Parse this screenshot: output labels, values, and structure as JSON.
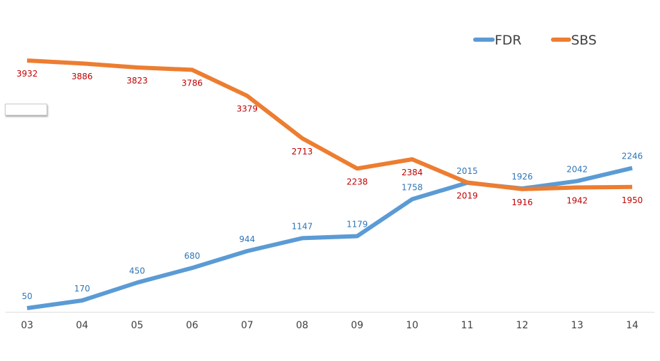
{
  "chart_data": {
    "type": "line",
    "title": "",
    "xlabel": "",
    "ylabel": "",
    "categories": [
      "03",
      "04",
      "05",
      "06",
      "07",
      "08",
      "09",
      "10",
      "11",
      "12",
      "13",
      "14"
    ],
    "ylim": [
      0,
      4300
    ],
    "grid": false,
    "legend_position": "top-right",
    "series": [
      {
        "name": "FDR",
        "color": "#5b9bd5",
        "label_color": "#2e75b6",
        "values": [
          50,
          170,
          450,
          680,
          944,
          1147,
          1179,
          1758,
          2015,
          1926,
          2042,
          2246
        ]
      },
      {
        "name": "SBS",
        "color": "#ed7d31",
        "label_color": "#c00000",
        "values": [
          3932,
          3886,
          3823,
          3786,
          3379,
          2713,
          2238,
          2384,
          2019,
          1916,
          1942,
          1950
        ]
      }
    ]
  }
}
